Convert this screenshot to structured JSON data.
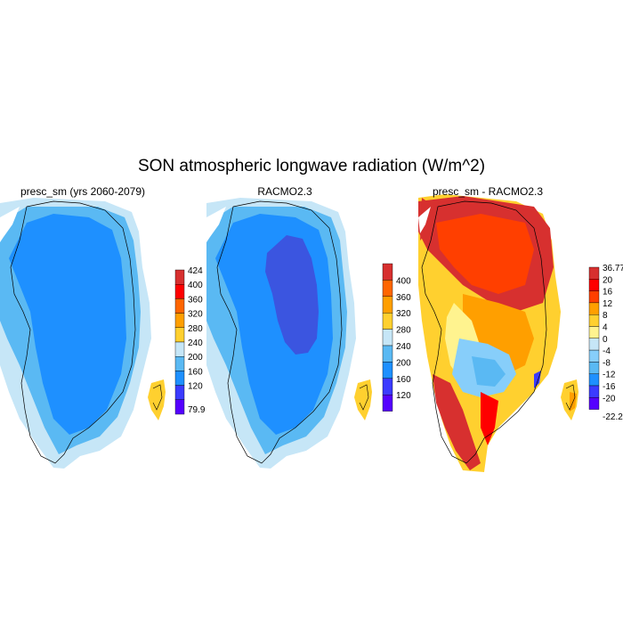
{
  "title": "SON atmospheric longwave radiation (W/m^2)",
  "chart_data": [
    {
      "type": "heatmap",
      "title": "presc_sm (yrs 2060-2079)",
      "colorbar": {
        "labels": [
          "424",
          "400",
          "360",
          "320",
          "280",
          "240",
          "200",
          "160",
          "120",
          "79.9"
        ],
        "colors": [
          "#d7302f",
          "#ff0000",
          "#ff6600",
          "#ff9f00",
          "#ffd02f",
          "#c6e6f7",
          "#5ab9f3",
          "#1e90ff",
          "#3b3bff",
          "#5500ff"
        ]
      },
      "dominant_values": [
        "200–240 interior",
        "240–280 margins",
        "280–320 small ice caps east"
      ]
    },
    {
      "type": "heatmap",
      "title": "RACMO2.3",
      "colorbar": {
        "labels": [
          "400",
          "360",
          "320",
          "280",
          "240",
          "200",
          "160",
          "120"
        ],
        "colors": [
          "#d7302f",
          "#ff6600",
          "#ff9f00",
          "#ffd02f",
          "#c6e6f7",
          "#5ab9f3",
          "#1e90ff",
          "#3b3bff",
          "#5500ff"
        ]
      },
      "dominant_values": [
        "160–200 central interior",
        "200–240 surrounding",
        "240–280 margins"
      ]
    },
    {
      "type": "heatmap",
      "title": "presc_sm - RACMO2.3",
      "colorbar": {
        "labels": [
          "36.77",
          "20",
          "16",
          "12",
          "8",
          "4",
          "0",
          "-4",
          "-8",
          "-12",
          "-16",
          "-20",
          "-22.2"
        ],
        "colors": [
          "#d7302f",
          "#ff0000",
          "#ff3f00",
          "#ff9f00",
          "#ffd02f",
          "#fff38f",
          "#c6e6f7",
          "#87cefa",
          "#5ab9f3",
          "#1e90ff",
          "#3b3bff",
          "#5500ff"
        ]
      },
      "dominant_values": [
        "+12 to +36.77 north and margins",
        "0 to +12 interior",
        "-4 to -12 southwest interior"
      ]
    }
  ]
}
